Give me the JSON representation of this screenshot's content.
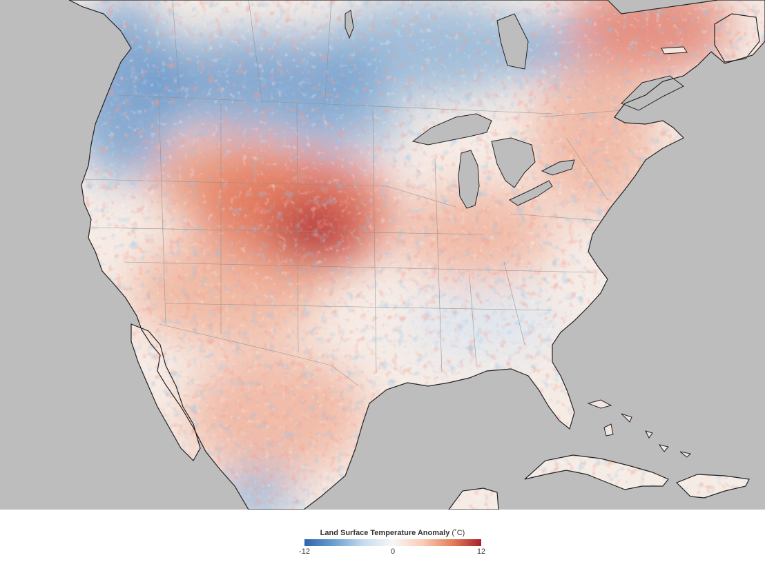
{
  "legend": {
    "title": "Land Surface Temperature Anomaly",
    "unit": "(˚C)",
    "min_label": "-12",
    "mid_label": "0",
    "max_label": "12",
    "min": -12,
    "max": 12,
    "colors": [
      "#2f63ad",
      "#6b9fd1",
      "#c6dbef",
      "#f7f7f7",
      "#fbcdb6",
      "#e57f5d",
      "#a7202d"
    ]
  },
  "map": {
    "ocean_color": "#bdbdbd",
    "lake_color": "#bdbdbd",
    "border_color": "#8f8f8f",
    "coast_color": "#222222"
  }
}
